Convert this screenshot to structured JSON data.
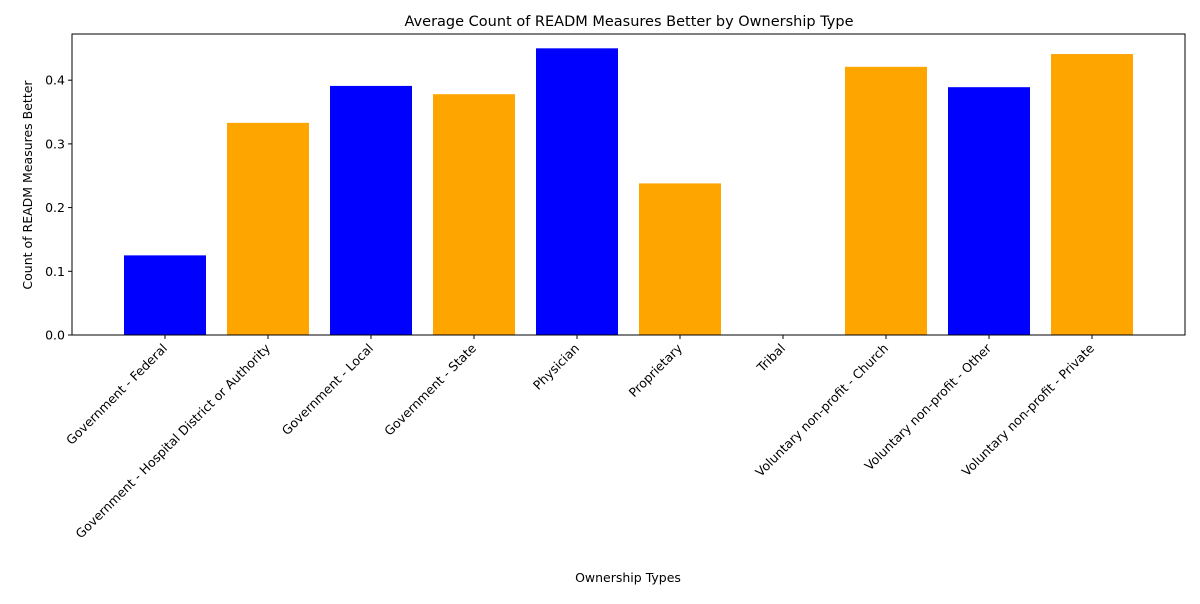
{
  "chart_data": {
    "type": "bar",
    "title": "Average Count of READM Measures Better by Ownership Type",
    "xlabel": "Ownership Types",
    "ylabel": "Count of READM Measures Better",
    "categories": [
      "Government - Federal",
      "Government - Hospital District or Authority",
      "Government - Local",
      "Government - State",
      "Physician",
      "Proprietary",
      "Tribal",
      "Voluntary non-profit - Church",
      "Voluntary non-profit - Other",
      "Voluntary non-profit - Private"
    ],
    "values": [
      0.125,
      0.333,
      0.391,
      0.378,
      0.45,
      0.238,
      0.0,
      0.421,
      0.389,
      0.441
    ],
    "bar_colors": [
      "#0000ff",
      "#ffa500",
      "#0000ff",
      "#ffa500",
      "#0000ff",
      "#ffa500",
      "#0000ff",
      "#ffa500",
      "#0000ff",
      "#ffa500"
    ],
    "ylim": [
      0,
      0.4725
    ],
    "yticks": [
      "0.0",
      "0.1",
      "0.2",
      "0.3",
      "0.4"
    ],
    "grid": false,
    "legend": "none"
  }
}
